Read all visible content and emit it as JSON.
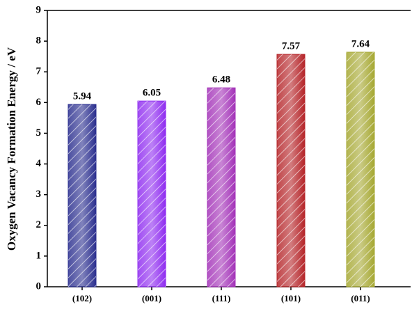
{
  "chart_data": {
    "type": "bar",
    "y_label": "Oxygen Vacancy Formation Energy / eV",
    "categories": [
      "(102)",
      "(001)",
      "(111)",
      "(101)",
      "(011)"
    ],
    "values": [
      5.94,
      6.05,
      6.48,
      7.57,
      7.64
    ],
    "colors": [
      "#2b2f8f",
      "#8f2cf0",
      "#a332b8",
      "#b52428",
      "#a6a832"
    ],
    "hatch": true,
    "ylim": [
      0,
      9
    ],
    "yticks": [
      0,
      1,
      2,
      3,
      4,
      5,
      6,
      7,
      8,
      9
    ]
  }
}
